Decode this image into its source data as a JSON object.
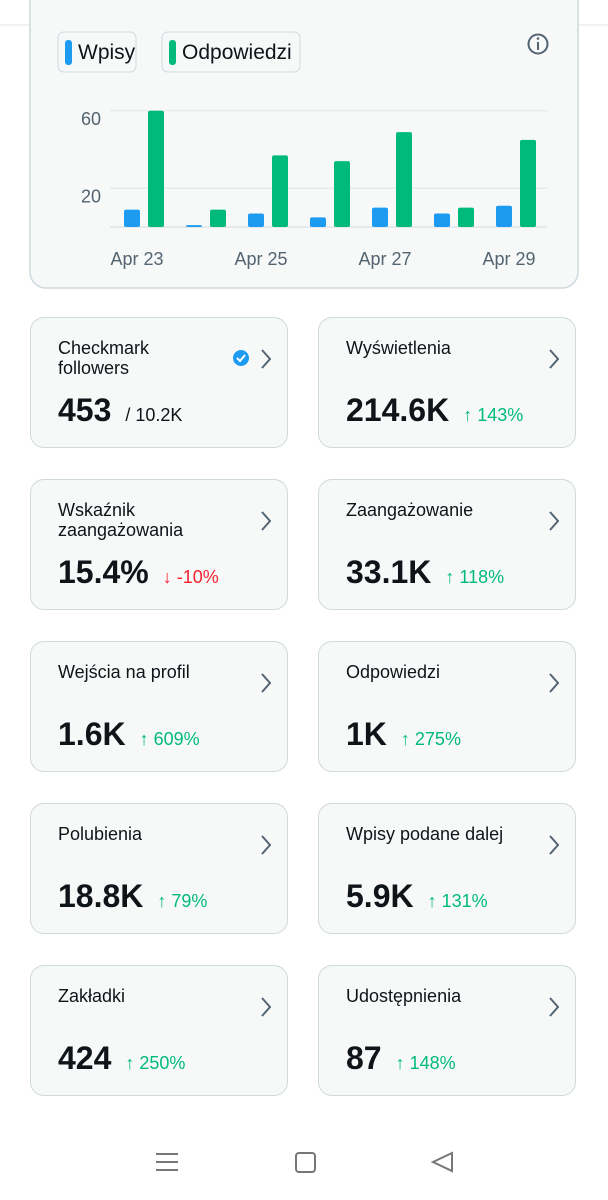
{
  "chart_data": {
    "type": "bar",
    "categories": [
      "Apr 23",
      null,
      "Apr 25",
      null,
      "Apr 27",
      null,
      "Apr 29"
    ],
    "series": [
      {
        "name": "Wpisy",
        "color": "#1d9bf0",
        "values": [
          9,
          1,
          7,
          5,
          10,
          7,
          11
        ]
      },
      {
        "name": "Odpowiedzi",
        "color": "#00ba7c",
        "values": [
          60,
          9,
          37,
          34,
          49,
          10,
          45
        ]
      }
    ],
    "ylim": [
      0,
      63
    ],
    "yticks": [
      20,
      60
    ],
    "grid": true
  },
  "cards": [
    {
      "title": "Checkmark followers",
      "value": "453",
      "extra": "/ 10.2K",
      "extra_color": "#0f1419",
      "verified": true
    },
    {
      "title": "Wyświetlenia",
      "value": "214.6K",
      "extra": "↑ 143%",
      "extra_color": "#00ba7c"
    },
    {
      "title": "Wskaźnik zaangażowania",
      "value": "15.4%",
      "extra": "↓ -10%",
      "extra_color": "#f4212e"
    },
    {
      "title": "Zaangażowanie",
      "value": "33.1K",
      "extra": "↑ 118%",
      "extra_color": "#00ba7c"
    },
    {
      "title": "Wejścia na profil",
      "value": "1.6K",
      "extra": "↑ 609%",
      "extra_color": "#00ba7c"
    },
    {
      "title": "Odpowiedzi",
      "value": "1K",
      "extra": "↑ 275%",
      "extra_color": "#00ba7c"
    },
    {
      "title": "Polubienia",
      "value": "18.8K",
      "extra": "↑ 79%",
      "extra_color": "#00ba7c"
    },
    {
      "title": "Wpisy podane dalej",
      "value": "5.9K",
      "extra": "↑ 131%",
      "extra_color": "#00ba7c"
    },
    {
      "title": "Zakładki",
      "value": "424",
      "extra": "↑ 250%",
      "extra_color": "#00ba7c"
    },
    {
      "title": "Udostępnienia",
      "value": "87",
      "extra": "↑ 148%",
      "extra_color": "#00ba7c"
    }
  ]
}
